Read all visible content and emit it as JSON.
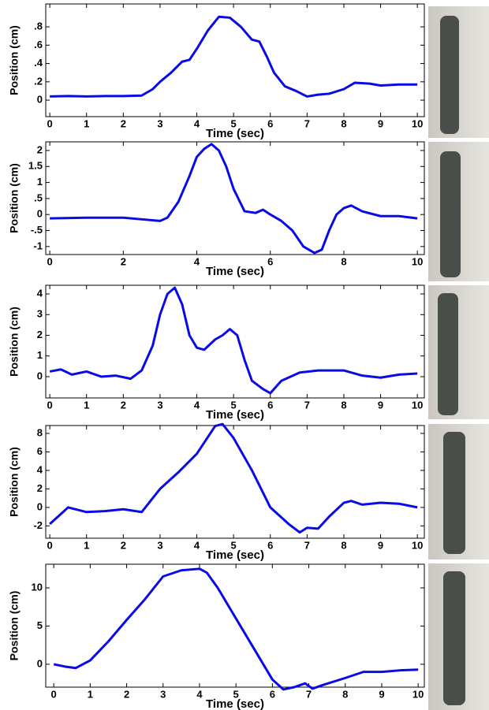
{
  "chart_data": [
    {
      "type": "line",
      "xlabel": "Time (sec)",
      "ylabel": "Position (cm)",
      "xlim": [
        -0.11,
        10.19
      ],
      "ylim": [
        -0.18,
        1.05
      ],
      "xticks": [
        0,
        1,
        2,
        3,
        4,
        5,
        6,
        7,
        8,
        9,
        10
      ],
      "yticks": [
        0,
        {
          "value": 0.2,
          "label": ".2"
        },
        {
          "value": 0.4,
          "label": ".4"
        },
        {
          "value": 0.6,
          "label": ".6"
        },
        {
          "value": 0.8,
          "label": ".8"
        }
      ],
      "series": [
        {
          "color": "#0a0ae6",
          "x": [
            0,
            0.5,
            1,
            1.5,
            2,
            2.5,
            2.8,
            3,
            3.3,
            3.6,
            3.8,
            4,
            4.3,
            4.6,
            4.9,
            5.2,
            5.5,
            5.7,
            5.9,
            6.1,
            6.4,
            6.7,
            7,
            7.3,
            7.6,
            8,
            8.3,
            8.7,
            9,
            9.5,
            10
          ],
          "values": [
            0.04,
            0.045,
            0.04,
            0.045,
            0.045,
            0.05,
            0.12,
            0.2,
            0.3,
            0.42,
            0.44,
            0.56,
            0.76,
            0.91,
            0.9,
            0.8,
            0.66,
            0.64,
            0.48,
            0.3,
            0.15,
            0.1,
            0.04,
            0.06,
            0.07,
            0.12,
            0.19,
            0.18,
            0.16,
            0.17,
            0.17
          ]
        }
      ]
    },
    {
      "type": "line",
      "xlabel": "Time (sec)",
      "ylabel": "Position (cm)",
      "xlim": [
        -0.11,
        10.19
      ],
      "ylim": [
        -1.25,
        2.27
      ],
      "xticks": [
        0,
        2,
        4,
        6,
        8,
        10
      ],
      "yticks": [
        {
          "value": -1,
          "label": "-1"
        },
        {
          "value": -0.5,
          "label": "-.5"
        },
        0,
        {
          "value": 0.5,
          "label": ".5"
        },
        1,
        1.5,
        2
      ],
      "series": [
        {
          "color": "#0a0ae6",
          "x": [
            0,
            1,
            2,
            2.5,
            3,
            3.2,
            3.5,
            3.8,
            4,
            4.2,
            4.4,
            4.6,
            4.8,
            5,
            5.3,
            5.6,
            5.8,
            6,
            6.3,
            6.6,
            6.9,
            7.2,
            7.4,
            7.6,
            7.8,
            8,
            8.2,
            8.5,
            9,
            9.5,
            10
          ],
          "values": [
            -0.12,
            -0.1,
            -0.1,
            -0.15,
            -0.2,
            -0.1,
            0.4,
            1.2,
            1.8,
            2.05,
            2.2,
            2.0,
            1.5,
            0.8,
            0.1,
            0.05,
            0.15,
            0.0,
            -0.2,
            -0.5,
            -1.0,
            -1.2,
            -1.1,
            -0.5,
            0,
            0.2,
            0.28,
            0.1,
            -0.05,
            -0.05,
            -0.12
          ]
        }
      ]
    },
    {
      "type": "line",
      "xlabel": "Time (sec)",
      "ylabel": "Position (cm)",
      "xlim": [
        -0.11,
        10.19
      ],
      "ylim": [
        -1.03,
        4.42
      ],
      "xticks": [
        0,
        1,
        2,
        3,
        4,
        5,
        6,
        7,
        8,
        9,
        10
      ],
      "yticks": [
        0,
        1,
        2,
        3,
        4
      ],
      "series": [
        {
          "color": "#0a0ae6",
          "x": [
            0,
            0.3,
            0.6,
            1,
            1.4,
            1.8,
            2.2,
            2.5,
            2.8,
            3,
            3.2,
            3.4,
            3.6,
            3.8,
            4,
            4.2,
            4.5,
            4.7,
            4.9,
            5.1,
            5.3,
            5.5,
            5.8,
            6,
            6.3,
            6.8,
            7.3,
            8,
            8.5,
            9,
            9.5,
            10
          ],
          "values": [
            0.25,
            0.35,
            0.1,
            0.25,
            0,
            0.05,
            -0.1,
            0.3,
            1.5,
            3.0,
            4.0,
            4.3,
            3.5,
            2.0,
            1.4,
            1.3,
            1.8,
            2.0,
            2.3,
            2.0,
            0.8,
            -0.2,
            -0.6,
            -0.8,
            -0.2,
            0.2,
            0.3,
            0.3,
            0.05,
            -0.05,
            0.1,
            0.15
          ]
        }
      ]
    },
    {
      "type": "line",
      "xlabel": "Time (sec)",
      "ylabel": "Position (cm)",
      "xlim": [
        -0.11,
        10.19
      ],
      "ylim": [
        -3.33,
        8.85
      ],
      "xticks": [
        0,
        1,
        2,
        3,
        4,
        5,
        6,
        7,
        8,
        9,
        10
      ],
      "yticks": [
        -2,
        0,
        2,
        4,
        6,
        8
      ],
      "series": [
        {
          "color": "#0a0ae6",
          "x": [
            0,
            0.5,
            1,
            1.5,
            2,
            2.5,
            3,
            3.5,
            4,
            4.5,
            4.7,
            5,
            5.5,
            6,
            6.5,
            6.8,
            7,
            7.3,
            7.6,
            8,
            8.2,
            8.5,
            9,
            9.5,
            10
          ],
          "values": [
            -1.8,
            0,
            -0.5,
            -0.4,
            -0.2,
            -0.5,
            2,
            3.8,
            5.8,
            8.8,
            9,
            7.5,
            4,
            0,
            -1.8,
            -2.7,
            -2.2,
            -2.3,
            -1,
            0.5,
            0.7,
            0.3,
            0.5,
            0.4,
            0
          ]
        }
      ]
    },
    {
      "type": "line",
      "xlabel": "Time (sec)",
      "ylabel": "Position (cm)",
      "xlim": [
        -0.22,
        10.17
      ],
      "ylim": [
        -3.0,
        13.1
      ],
      "xticks": [
        0,
        1,
        2,
        3,
        4,
        5,
        6,
        7,
        8,
        9,
        10
      ],
      "yticks": [
        0,
        5,
        10
      ],
      "series": [
        {
          "color": "#0a0ae6",
          "x": [
            0,
            0.3,
            0.6,
            1,
            1.5,
            2,
            2.5,
            3,
            3.5,
            4,
            4.2,
            4.5,
            5,
            5.5,
            6,
            6.3,
            6.6,
            6.9,
            7.1,
            7.4,
            8,
            8.5,
            9,
            9.5,
            10
          ],
          "values": [
            0,
            -0.3,
            -0.5,
            0.5,
            3,
            5.8,
            8.5,
            11.5,
            12.3,
            12.5,
            12,
            10,
            6,
            2,
            -2,
            -3.3,
            -3,
            -2.5,
            -3.2,
            -2.7,
            -1.8,
            -1,
            -1,
            -0.8,
            -0.7
          ]
        }
      ]
    }
  ]
}
